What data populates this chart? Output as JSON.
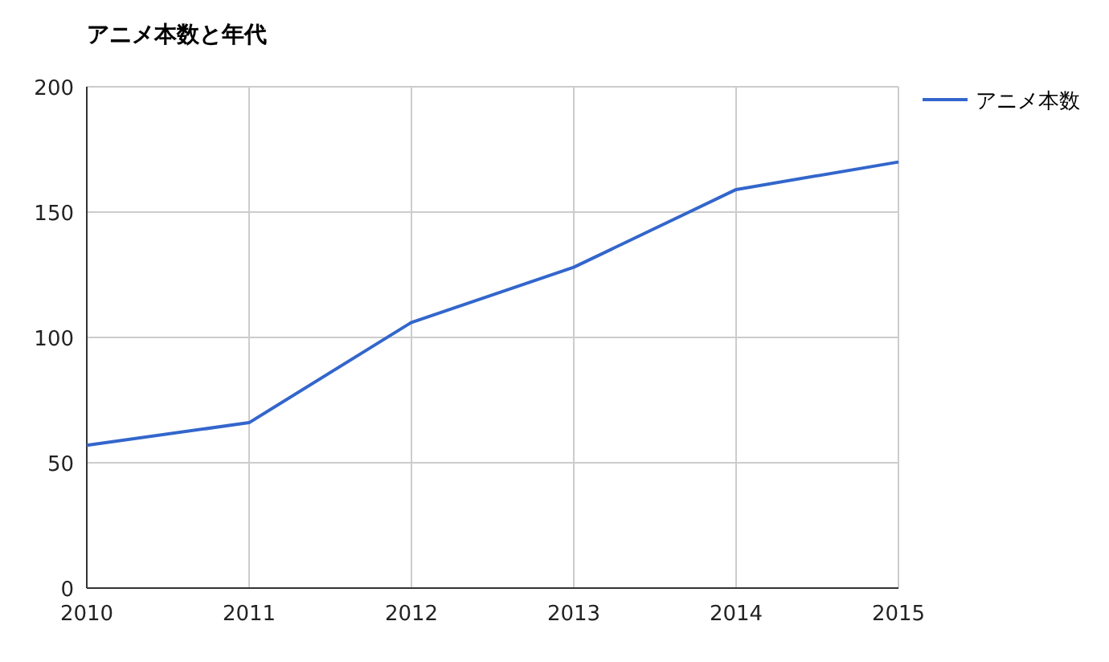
{
  "chart_data": {
    "type": "line",
    "title": "アニメ本数と年代",
    "x": [
      2010,
      2011,
      2012,
      2013,
      2014,
      2015
    ],
    "series": [
      {
        "name": "アニメ本数",
        "color": "#3366cc",
        "values": [
          57,
          66,
          106,
          128,
          159,
          170
        ]
      }
    ],
    "xlim": [
      2010,
      2015
    ],
    "xticks": [
      2010,
      2011,
      2012,
      2013,
      2014,
      2015
    ],
    "ylim": [
      0,
      200
    ],
    "yticks": [
      0,
      50,
      100,
      150,
      200
    ],
    "grid": true,
    "legend": "right",
    "marker": "none",
    "line_style": "solid"
  }
}
